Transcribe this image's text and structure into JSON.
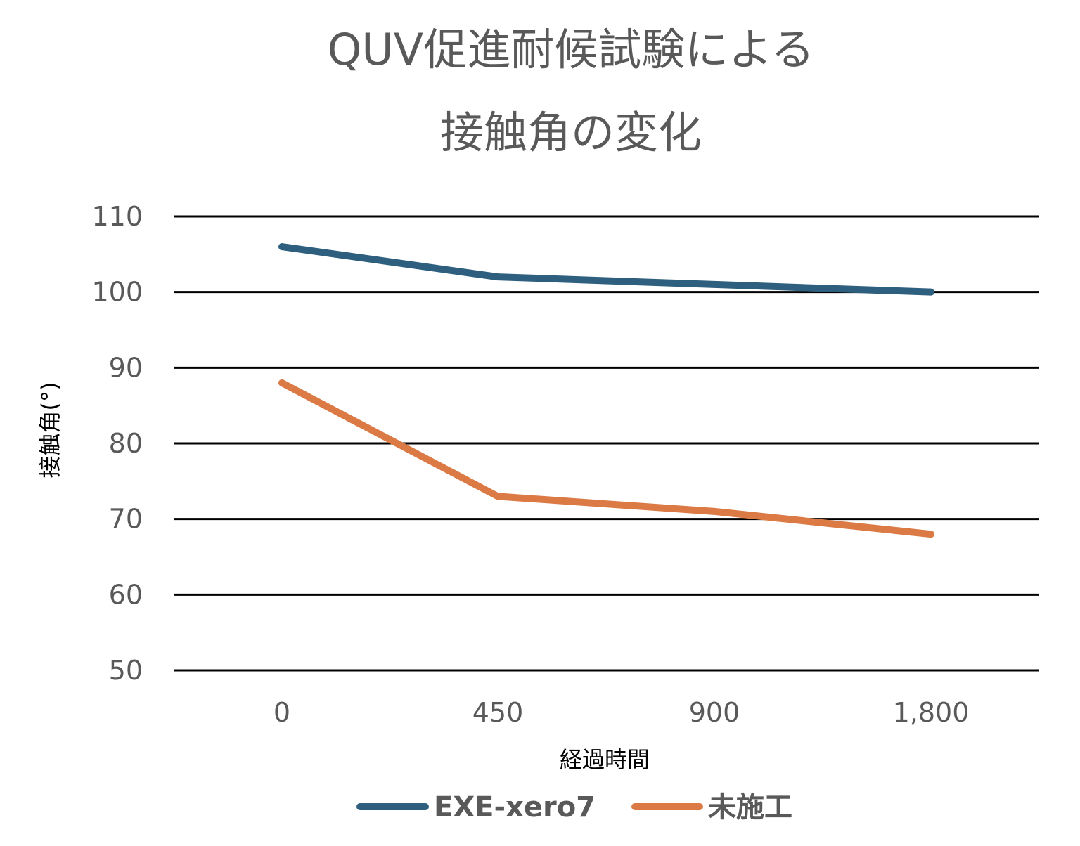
{
  "chart_data": {
    "type": "line",
    "title_lines": [
      "QUV促進耐候試験による",
      "接触角の変化"
    ],
    "xlabel": "経過時間",
    "ylabel": "接触角(°)",
    "categories": [
      "0",
      "450",
      "900",
      "1,800"
    ],
    "ylim": [
      50,
      110
    ],
    "yticks": [
      50,
      60,
      70,
      80,
      90,
      100,
      110
    ],
    "grid": true,
    "legend_position": "bottom",
    "series": [
      {
        "name": "EXE-xero7",
        "color": "#2e5f7e",
        "values": [
          106,
          102,
          101,
          100
        ]
      },
      {
        "name": "未施工",
        "color": "#dc7a45",
        "values": [
          88,
          73,
          71,
          68
        ]
      }
    ]
  }
}
